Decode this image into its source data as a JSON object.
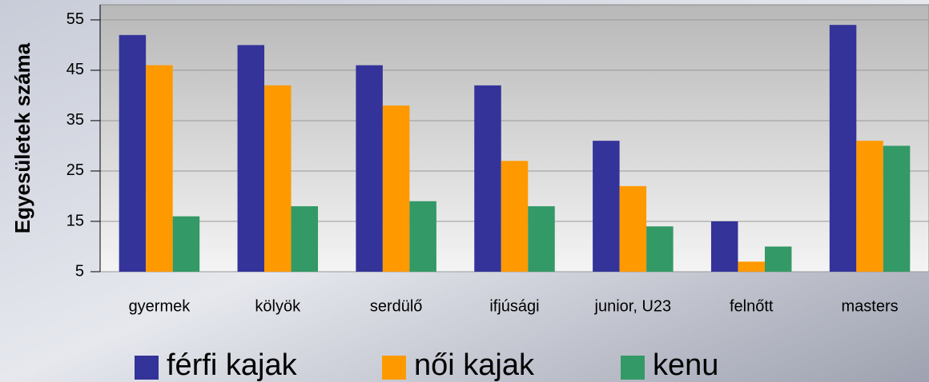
{
  "chart_data": {
    "type": "bar",
    "ylabel": "Egyesületek száma",
    "categories": [
      "gyermek",
      "kölyök",
      "serdülő",
      "ifjúsági",
      "junior, U23",
      "felnőtt",
      "masters"
    ],
    "series": [
      {
        "name": "férfi kajak",
        "color": "#333399",
        "values": [
          52,
          50,
          46,
          42,
          31,
          15,
          54
        ]
      },
      {
        "name": "női kajak",
        "color": "#ff9900",
        "values": [
          46,
          42,
          38,
          27,
          22,
          7,
          31
        ]
      },
      {
        "name": "kenu",
        "color": "#339966",
        "values": [
          16,
          18,
          19,
          18,
          14,
          10,
          30
        ]
      }
    ],
    "ylim": [
      5,
      58
    ],
    "yticks": [
      5,
      15,
      25,
      35,
      45,
      55
    ],
    "grid": true,
    "legend": "bottom"
  }
}
